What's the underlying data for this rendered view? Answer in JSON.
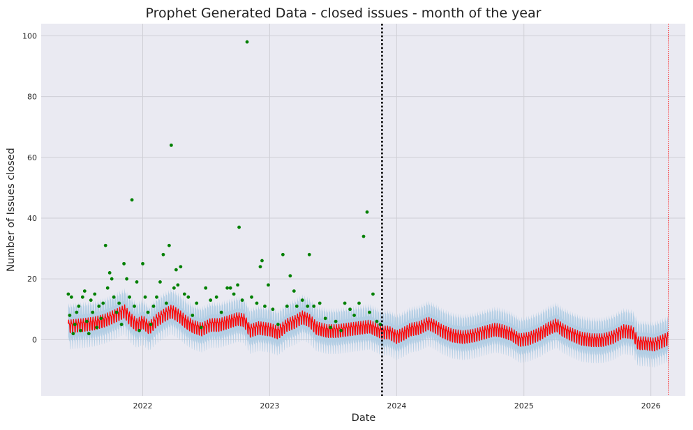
{
  "chart_data": {
    "type": "scatter",
    "title": "Prophet Generated Data - closed issues - month of the year",
    "xlabel": "Date",
    "ylabel": "Number of Issues closed",
    "x_range": [
      "2021-03-15",
      "2026-04-10"
    ],
    "ylim": [
      -18.5,
      104
    ],
    "x_ticks": [
      {
        "date": "2022-01-01",
        "label": "2022"
      },
      {
        "date": "2023-01-01",
        "label": "2023"
      },
      {
        "date": "2024-01-01",
        "label": "2024"
      },
      {
        "date": "2025-01-01",
        "label": "2025"
      },
      {
        "date": "2026-01-01",
        "label": "2026"
      }
    ],
    "y_ticks": [
      0,
      20,
      40,
      60,
      80,
      100
    ],
    "grid": true,
    "background": "#eaeaf2",
    "history_end": "2023-11-20",
    "forecast_end": "2026-02-20",
    "interval_half_width": 5.5,
    "weekly_amplitude": 1.8,
    "series": [
      {
        "kind": "points",
        "color": "#008000",
        "points": [
          [
            "2021-06-01",
            15
          ],
          [
            "2021-06-05",
            8
          ],
          [
            "2021-06-10",
            14
          ],
          [
            "2021-06-15",
            2
          ],
          [
            "2021-06-20",
            5
          ],
          [
            "2021-06-25",
            9
          ],
          [
            "2021-07-01",
            11
          ],
          [
            "2021-07-06",
            3
          ],
          [
            "2021-07-12",
            14
          ],
          [
            "2021-07-18",
            16
          ],
          [
            "2021-07-24",
            6
          ],
          [
            "2021-07-30",
            2
          ],
          [
            "2021-08-05",
            13
          ],
          [
            "2021-08-10",
            9
          ],
          [
            "2021-08-16",
            15
          ],
          [
            "2021-08-22",
            4
          ],
          [
            "2021-08-28",
            11
          ],
          [
            "2021-09-03",
            7
          ],
          [
            "2021-09-09",
            12
          ],
          [
            "2021-09-16",
            31
          ],
          [
            "2021-09-22",
            17
          ],
          [
            "2021-09-28",
            22
          ],
          [
            "2021-10-04",
            20
          ],
          [
            "2021-10-10",
            14
          ],
          [
            "2021-10-18",
            9
          ],
          [
            "2021-10-25",
            12
          ],
          [
            "2021-11-01",
            5
          ],
          [
            "2021-11-08",
            25
          ],
          [
            "2021-11-16",
            20
          ],
          [
            "2021-11-24",
            14
          ],
          [
            "2021-12-01",
            46
          ],
          [
            "2021-12-08",
            11
          ],
          [
            "2021-12-15",
            19
          ],
          [
            "2021-12-22",
            3
          ],
          [
            "2022-01-01",
            25
          ],
          [
            "2022-01-08",
            14
          ],
          [
            "2022-01-16",
            9
          ],
          [
            "2022-01-24",
            5
          ],
          [
            "2022-02-01",
            11
          ],
          [
            "2022-02-10",
            14
          ],
          [
            "2022-02-20",
            19
          ],
          [
            "2022-03-01",
            28
          ],
          [
            "2022-03-10",
            12
          ],
          [
            "2022-03-18",
            31
          ],
          [
            "2022-03-24",
            64
          ],
          [
            "2022-04-01",
            17
          ],
          [
            "2022-04-07",
            23
          ],
          [
            "2022-04-12",
            18
          ],
          [
            "2022-04-20",
            24
          ],
          [
            "2022-05-01",
            15
          ],
          [
            "2022-05-12",
            14
          ],
          [
            "2022-05-24",
            8
          ],
          [
            "2022-06-05",
            12
          ],
          [
            "2022-06-18",
            4
          ],
          [
            "2022-07-01",
            17
          ],
          [
            "2022-07-15",
            13
          ],
          [
            "2022-08-01",
            14
          ],
          [
            "2022-08-15",
            9
          ],
          [
            "2022-09-01",
            17
          ],
          [
            "2022-09-10",
            17
          ],
          [
            "2022-09-20",
            15
          ],
          [
            "2022-10-01",
            18
          ],
          [
            "2022-10-05",
            37
          ],
          [
            "2022-10-14",
            13
          ],
          [
            "2022-10-28",
            98
          ],
          [
            "2022-11-10",
            14
          ],
          [
            "2022-11-25",
            12
          ],
          [
            "2022-12-05",
            24
          ],
          [
            "2022-12-10",
            26
          ],
          [
            "2022-12-18",
            11
          ],
          [
            "2022-12-28",
            18
          ],
          [
            "2023-01-10",
            10
          ],
          [
            "2023-01-25",
            5
          ],
          [
            "2023-02-08",
            28
          ],
          [
            "2023-02-20",
            11
          ],
          [
            "2023-03-01",
            21
          ],
          [
            "2023-03-12",
            16
          ],
          [
            "2023-03-20",
            11
          ],
          [
            "2023-04-05",
            13
          ],
          [
            "2023-04-20",
            11
          ],
          [
            "2023-04-25",
            28
          ],
          [
            "2023-05-08",
            11
          ],
          [
            "2023-05-25",
            12
          ],
          [
            "2023-06-10",
            7
          ],
          [
            "2023-06-25",
            4
          ],
          [
            "2023-07-10",
            6
          ],
          [
            "2023-07-25",
            3
          ],
          [
            "2023-08-05",
            12
          ],
          [
            "2023-08-20",
            10
          ],
          [
            "2023-09-01",
            8
          ],
          [
            "2023-09-15",
            12
          ],
          [
            "2023-09-28",
            34
          ],
          [
            "2023-10-08",
            42
          ],
          [
            "2023-10-15",
            9
          ],
          [
            "2023-10-25",
            15
          ],
          [
            "2023-11-05",
            6
          ],
          [
            "2023-11-15",
            5
          ]
        ]
      },
      {
        "kind": "trend",
        "color": "#ff0000",
        "points": [
          [
            "2021-06-01",
            4.5
          ],
          [
            "2021-07-15",
            5
          ],
          [
            "2021-08-15",
            5.5
          ],
          [
            "2021-09-15",
            6.5
          ],
          [
            "2021-10-15",
            8
          ],
          [
            "2021-11-10",
            9.5
          ],
          [
            "2021-11-25",
            7
          ],
          [
            "2021-12-15",
            5
          ],
          [
            "2022-01-01",
            6
          ],
          [
            "2022-01-20",
            4
          ],
          [
            "2022-02-10",
            6.5
          ],
          [
            "2022-03-01",
            8
          ],
          [
            "2022-03-25",
            9.5
          ],
          [
            "2022-04-15",
            8
          ],
          [
            "2022-05-05",
            6
          ],
          [
            "2022-05-25",
            4.5
          ],
          [
            "2022-06-20",
            3.5
          ],
          [
            "2022-07-15",
            5
          ],
          [
            "2022-08-10",
            5
          ],
          [
            "2022-09-05",
            6
          ],
          [
            "2022-10-01",
            7
          ],
          [
            "2022-10-20",
            6.5
          ],
          [
            "2022-11-05",
            3
          ],
          [
            "2022-12-01",
            4
          ],
          [
            "2023-01-01",
            3.5
          ],
          [
            "2023-01-25",
            2.5
          ],
          [
            "2023-02-20",
            5
          ],
          [
            "2023-03-15",
            6
          ],
          [
            "2023-04-05",
            7.5
          ],
          [
            "2023-04-25",
            6.5
          ],
          [
            "2023-05-15",
            4
          ],
          [
            "2023-06-15",
            3
          ],
          [
            "2023-07-15",
            3
          ],
          [
            "2023-08-15",
            3.5
          ],
          [
            "2023-09-15",
            4
          ],
          [
            "2023-10-15",
            4.5
          ],
          [
            "2023-11-20",
            2.5
          ],
          [
            "2023-12-10",
            2.5
          ],
          [
            "2024-01-01",
            1
          ],
          [
            "2024-01-20",
            2
          ],
          [
            "2024-02-10",
            3.5
          ],
          [
            "2024-03-05",
            4
          ],
          [
            "2024-04-01",
            5.5
          ],
          [
            "2024-04-20",
            4.5
          ],
          [
            "2024-05-10",
            3
          ],
          [
            "2024-06-10",
            1.5
          ],
          [
            "2024-07-10",
            1
          ],
          [
            "2024-08-10",
            1.5
          ],
          [
            "2024-09-10",
            2.5
          ],
          [
            "2024-10-10",
            3.5
          ],
          [
            "2024-11-01",
            3
          ],
          [
            "2024-11-25",
            2
          ],
          [
            "2024-12-20",
            0
          ],
          [
            "2025-01-15",
            0.5
          ],
          [
            "2025-02-15",
            2
          ],
          [
            "2025-03-15",
            4
          ],
          [
            "2025-04-05",
            5
          ],
          [
            "2025-04-20",
            3.5
          ],
          [
            "2025-05-15",
            2
          ],
          [
            "2025-06-15",
            0.5
          ],
          [
            "2025-07-15",
            0
          ],
          [
            "2025-08-15",
            0
          ],
          [
            "2025-09-15",
            1
          ],
          [
            "2025-10-15",
            3
          ],
          [
            "2025-11-10",
            2.5
          ],
          [
            "2025-11-25",
            -1
          ],
          [
            "2025-12-15",
            -1
          ],
          [
            "2026-01-10",
            -1.5
          ],
          [
            "2026-02-01",
            -0.5
          ],
          [
            "2026-02-20",
            0.5
          ]
        ]
      }
    ]
  }
}
